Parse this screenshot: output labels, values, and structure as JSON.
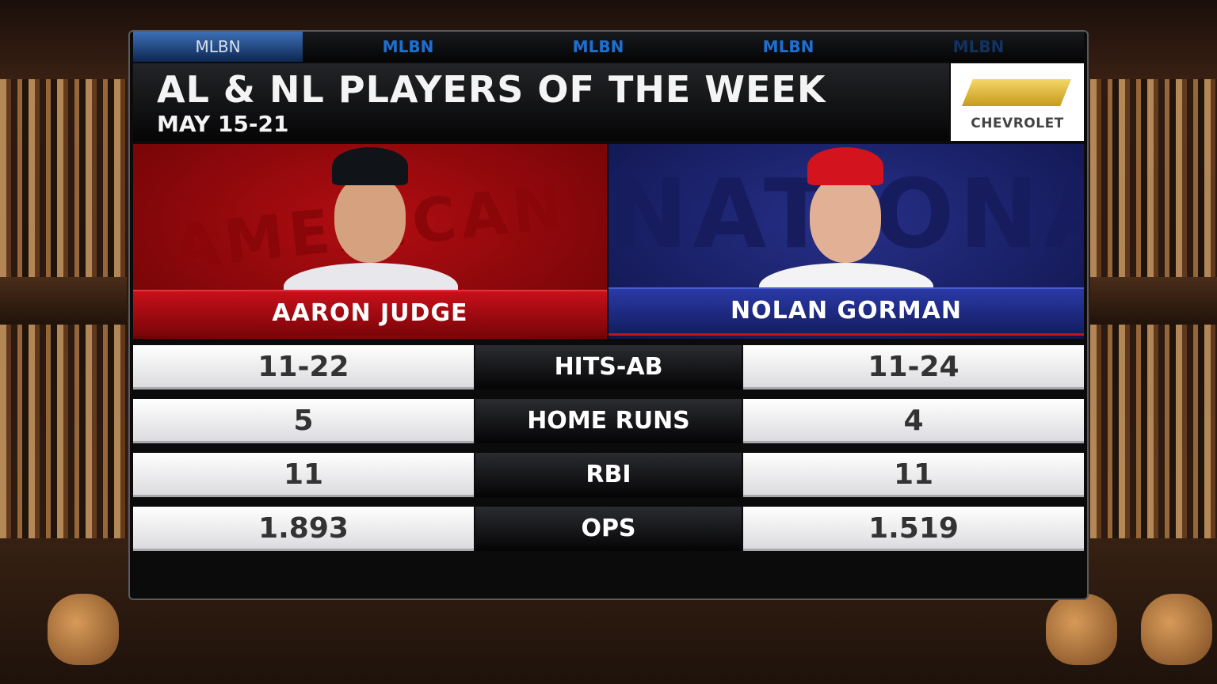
{
  "network_tabs": [
    "MLBN",
    "MLBN",
    "MLBN",
    "MLBN",
    "MLBN"
  ],
  "header": {
    "title": "AL & NL PLAYERS OF THE WEEK",
    "subtitle": "MAY 15-21",
    "sponsor": "CHEVROLET"
  },
  "players": [
    {
      "league_watermark": "AMERICAN",
      "name": "AARON JUDGE"
    },
    {
      "league_watermark": "NATIONAL",
      "name": "NOLAN GORMAN"
    }
  ],
  "stats": {
    "rows": [
      [
        "11-22",
        "HITS-AB",
        "11-24"
      ],
      [
        "5",
        "HOME RUNS",
        "4"
      ],
      [
        "11",
        "RBI",
        "11"
      ],
      [
        "1.893",
        "OPS",
        "1.519"
      ]
    ]
  }
}
